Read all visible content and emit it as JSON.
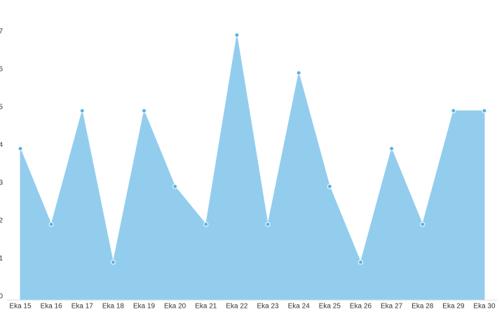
{
  "chart_data": {
    "type": "area",
    "categories": [
      "Eka 15",
      "Eka 16",
      "Eka 17",
      "Eka 18",
      "Eka 19",
      "Eka 20",
      "Eka 21",
      "Eka 22",
      "Eka 23",
      "Eka 24",
      "Eka 25",
      "Eka 26",
      "Eka 27",
      "Eka 28",
      "Eka 29",
      "Eka 30"
    ],
    "values": [
      4,
      2,
      5,
      1,
      5,
      3,
      2,
      7,
      2,
      6,
      3,
      1,
      4,
      2,
      5,
      5
    ],
    "color": "#92cdee",
    "point_color": "#5ab4de",
    "ylim": [
      0,
      7
    ],
    "yticks": [
      0,
      1,
      2,
      3,
      4,
      5,
      6,
      7
    ]
  }
}
